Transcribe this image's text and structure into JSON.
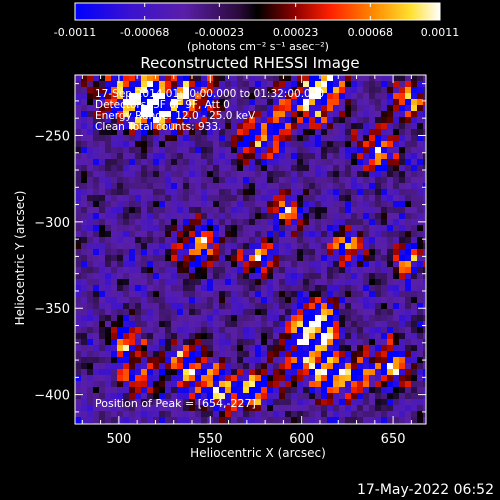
{
  "colorbar": {
    "tick_labels": [
      "-0.0011",
      "-0.00068",
      "-0.00023",
      "0.00023",
      "0.00068",
      "0.0011"
    ],
    "tick_values": [
      -0.0011,
      -0.00068,
      -0.00023,
      0.00023,
      0.00068,
      0.0011
    ],
    "range": [
      -0.0011,
      0.0011
    ],
    "unit_label": "(photons cm⁻² s⁻¹ asec⁻²)"
  },
  "chart_data": {
    "type": "heatmap",
    "title": "Reconstructed RHESSI Image",
    "xlabel": "Heliocentric X (arcsec)",
    "ylabel": "Heliocentric Y (arcsec)",
    "xlim": [
      476,
      668
    ],
    "ylim": [
      -417,
      -215
    ],
    "xticks": [
      500,
      550,
      600,
      650
    ],
    "xtick_labels": [
      "500",
      "550",
      "600",
      "650"
    ],
    "yticks": [
      -250,
      -300,
      -350,
      -400
    ],
    "ytick_labels": [
      "−250",
      "−300",
      "−350",
      "−400"
    ],
    "annotations": [
      "17-Sep-2014 01:30:00.000 to 01:32:00.000",
      "Detectors: 3F 6F 9F, Att 0",
      "Energy Range: 12.0 - 25.0 keV",
      "Clean    Total counts: 933."
    ],
    "peak_text": "Position of Peak = [654,-227]",
    "peak_position": [
      654,
      -227
    ]
  },
  "footer": {
    "timestamp": "17-May-2022 06:52"
  }
}
